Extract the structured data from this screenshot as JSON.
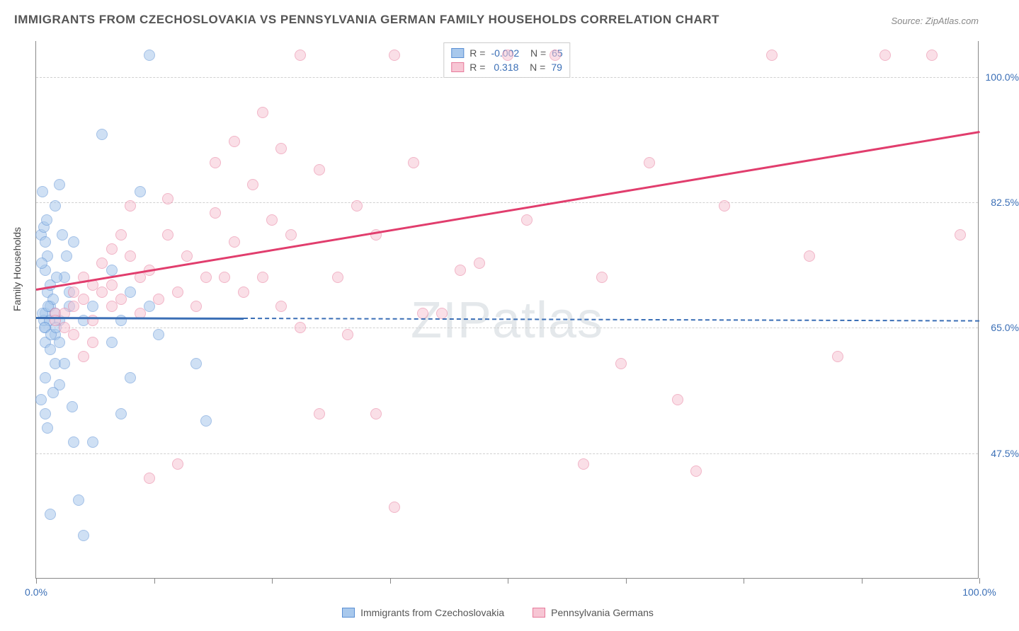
{
  "title": "IMMIGRANTS FROM CZECHOSLOVAKIA VS PENNSYLVANIA GERMAN FAMILY HOUSEHOLDS CORRELATION CHART",
  "source": "Source: ZipAtlas.com",
  "watermark": "ZIPatlas",
  "ylabel": "Family Households",
  "chart": {
    "type": "scatter",
    "xlim": [
      0,
      100
    ],
    "ylim": [
      30,
      105
    ],
    "xtick_positions": [
      0,
      12.5,
      25,
      37.5,
      50,
      62.5,
      75,
      87.5,
      100
    ],
    "xtick_labels": {
      "0": "0.0%",
      "100": "100.0%"
    },
    "ytick_positions": [
      47.5,
      65.0,
      82.5,
      100.0
    ],
    "ytick_labels": [
      "47.5%",
      "65.0%",
      "82.5%",
      "100.0%"
    ],
    "background_color": "#ffffff",
    "grid_color": "#d0d0d0",
    "axis_color": "#888888",
    "label_color": "#3b6fb6",
    "point_radius": 8,
    "point_opacity": 0.55
  },
  "series": [
    {
      "name": "Immigrants from Czechoslovakia",
      "color_fill": "#a8c8ec",
      "color_stroke": "#5a8fd4",
      "R": "-0.002",
      "N": "65",
      "trend": {
        "x1": 0,
        "y1": 66.5,
        "x2": 22,
        "y2": 66.4,
        "extend_dash_to": 100,
        "color": "#3b6fb6"
      },
      "points": [
        [
          1,
          67
        ],
        [
          1,
          65
        ],
        [
          1.5,
          68
        ],
        [
          1.2,
          70
        ],
        [
          2,
          67
        ],
        [
          2,
          64
        ],
        [
          2.5,
          63
        ],
        [
          0.8,
          66
        ],
        [
          1.5,
          71
        ],
        [
          1.8,
          69
        ],
        [
          0.5,
          78
        ],
        [
          0.8,
          79
        ],
        [
          1,
          77
        ],
        [
          1.2,
          75
        ],
        [
          2.8,
          78
        ],
        [
          3,
          72
        ],
        [
          3.5,
          70
        ],
        [
          2,
          82
        ],
        [
          4,
          77
        ],
        [
          1.1,
          80
        ],
        [
          0.7,
          84
        ],
        [
          2.5,
          85
        ],
        [
          11,
          84
        ],
        [
          7,
          92
        ],
        [
          12,
          103
        ],
        [
          3.5,
          68
        ],
        [
          2.5,
          66
        ],
        [
          1,
          63
        ],
        [
          1.5,
          62
        ],
        [
          2,
          60
        ],
        [
          3,
          60
        ],
        [
          1,
          58
        ],
        [
          2.5,
          57
        ],
        [
          1.8,
          56
        ],
        [
          3.8,
          54
        ],
        [
          0.5,
          55
        ],
        [
          1,
          53
        ],
        [
          1.2,
          51
        ],
        [
          4,
          49
        ],
        [
          6,
          49
        ],
        [
          4.5,
          41
        ],
        [
          5,
          36
        ],
        [
          1.5,
          39
        ],
        [
          8,
          63
        ],
        [
          9,
          66
        ],
        [
          10,
          58
        ],
        [
          9,
          53
        ],
        [
          18,
          52
        ],
        [
          17,
          60
        ],
        [
          12,
          68
        ],
        [
          10,
          70
        ],
        [
          13,
          64
        ],
        [
          8,
          73
        ],
        [
          5,
          66
        ],
        [
          6,
          68
        ],
        [
          1,
          73
        ],
        [
          0.6,
          74
        ],
        [
          2.2,
          72
        ],
        [
          3.2,
          75
        ],
        [
          1.4,
          66
        ],
        [
          0.9,
          65
        ],
        [
          1.6,
          64
        ],
        [
          2.1,
          65
        ],
        [
          0.7,
          67
        ],
        [
          1.3,
          68
        ]
      ]
    },
    {
      "name": "Pennsylvania Germans",
      "color_fill": "#f7c6d4",
      "color_stroke": "#e77a9b",
      "R": "0.318",
      "N": "79",
      "trend": {
        "x1": 0,
        "y1": 70.5,
        "x2": 100,
        "y2": 92.5,
        "color": "#e13d6d"
      },
      "points": [
        [
          2,
          67
        ],
        [
          3,
          67
        ],
        [
          4,
          70
        ],
        [
          5,
          72
        ],
        [
          6,
          71
        ],
        [
          5,
          69
        ],
        [
          7,
          70
        ],
        [
          4,
          68
        ],
        [
          8,
          71
        ],
        [
          9,
          69
        ],
        [
          3,
          65
        ],
        [
          4,
          64
        ],
        [
          6,
          66
        ],
        [
          2,
          66
        ],
        [
          7,
          74
        ],
        [
          8,
          76
        ],
        [
          10,
          75
        ],
        [
          11,
          72
        ],
        [
          12,
          73
        ],
        [
          9,
          78
        ],
        [
          14,
          78
        ],
        [
          16,
          75
        ],
        [
          18,
          72
        ],
        [
          20,
          72
        ],
        [
          15,
          70
        ],
        [
          17,
          68
        ],
        [
          19,
          81
        ],
        [
          23,
          85
        ],
        [
          25,
          80
        ],
        [
          27,
          78
        ],
        [
          21,
          91
        ],
        [
          24,
          95
        ],
        [
          26,
          90
        ],
        [
          28,
          103
        ],
        [
          30,
          87
        ],
        [
          32,
          72
        ],
        [
          34,
          82
        ],
        [
          36,
          78
        ],
        [
          38,
          103
        ],
        [
          40,
          88
        ],
        [
          43,
          67
        ],
        [
          45,
          73
        ],
        [
          47,
          74
        ],
        [
          50,
          103
        ],
        [
          52,
          80
        ],
        [
          55,
          103
        ],
        [
          58,
          46
        ],
        [
          60,
          72
        ],
        [
          62,
          60
        ],
        [
          65,
          88
        ],
        [
          68,
          55
        ],
        [
          70,
          45
        ],
        [
          73,
          82
        ],
        [
          78,
          103
        ],
        [
          82,
          75
        ],
        [
          85,
          61
        ],
        [
          90,
          103
        ],
        [
          95,
          103
        ],
        [
          98,
          78
        ],
        [
          15,
          46
        ],
        [
          12,
          44
        ],
        [
          30,
          53
        ],
        [
          33,
          64
        ],
        [
          36,
          53
        ],
        [
          38,
          40
        ],
        [
          10,
          82
        ],
        [
          11,
          67
        ],
        [
          13,
          69
        ],
        [
          8,
          68
        ],
        [
          6,
          63
        ],
        [
          5,
          61
        ],
        [
          22,
          70
        ],
        [
          24,
          72
        ],
        [
          26,
          68
        ],
        [
          28,
          65
        ],
        [
          14,
          83
        ],
        [
          19,
          88
        ],
        [
          21,
          77
        ],
        [
          41,
          67
        ]
      ]
    }
  ],
  "legend_bottom": [
    {
      "label": "Immigrants from Czechoslovakia",
      "fill": "#a8c8ec",
      "stroke": "#5a8fd4"
    },
    {
      "label": "Pennsylvania Germans",
      "fill": "#f7c6d4",
      "stroke": "#e77a9b"
    }
  ]
}
